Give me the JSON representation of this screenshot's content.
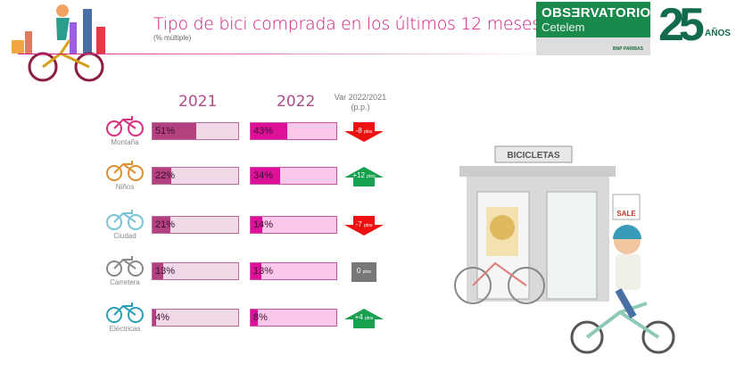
{
  "header": {
    "title": "Tipo de bici comprada en los últimos 12 meses",
    "subtitle": "(% múltiple)"
  },
  "logo": {
    "line1": "OBSƎRVATORIO",
    "line2": "Cetelem",
    "partner": "BNP PARIBAS",
    "anniversary_number": "25",
    "anniversary_label": "AÑOS"
  },
  "shop_sign": "BICICLETAS",
  "sale_sign": "SALE",
  "colors": {
    "y2021": "#b3407f",
    "y2022": "#dd1199",
    "down": "#ee1111",
    "up": "#17a050",
    "neutral": "#777777"
  },
  "chart_data": {
    "type": "bar",
    "title": "Tipo de bici comprada en los últimos 12 meses",
    "subtitle": "(% múltiple)",
    "categories": [
      "Montaña",
      "Niños",
      "Ciudad",
      "Carretera",
      "Eléctricas"
    ],
    "series": [
      {
        "name": "2021",
        "values": [
          51,
          22,
          21,
          13,
          4
        ]
      },
      {
        "name": "2022",
        "values": [
          43,
          34,
          14,
          13,
          8
        ]
      }
    ],
    "value_labels": {
      "2021": [
        "51%",
        "22%",
        "21%",
        "13%",
        "4%"
      ],
      "2022": [
        "43%",
        "34%",
        "14%",
        "13%",
        "8%"
      ]
    },
    "variation_header": [
      "Var 2022/2021",
      "(p.p.)"
    ],
    "variation": [
      -8,
      12,
      -7,
      0,
      4
    ],
    "variation_labels": [
      [
        "-8",
        "ptos"
      ],
      [
        "+12",
        "ptos"
      ],
      [
        "-7",
        "ptos"
      ],
      [
        "0",
        "ptos"
      ],
      [
        "+4",
        "ptos"
      ]
    ],
    "ylim": [
      0,
      100
    ]
  }
}
